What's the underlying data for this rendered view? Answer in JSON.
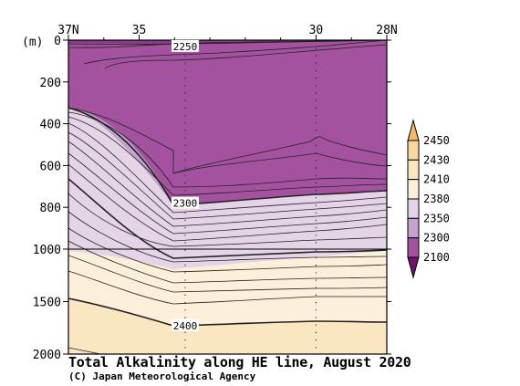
{
  "chart_data": {
    "type": "contour",
    "title": "Total Alkalinity along HE line, August 2020",
    "credit": "(C) Japan Meteorological Agency",
    "x_axis": {
      "ticks": [
        "37N",
        "35",
        "30",
        "28N"
      ],
      "tick_values": [
        37,
        35,
        30,
        28
      ]
    },
    "y_axis": {
      "unit": "(m)",
      "ticks": [
        "0",
        "200",
        "400",
        "600",
        "800",
        "1000",
        "1500",
        "2000"
      ],
      "tick_values": [
        0,
        200,
        400,
        600,
        800,
        1000,
        1500,
        2000
      ],
      "scale_break_depth": 1000
    },
    "station_latitudes": [
      33.7,
      30.0
    ],
    "contour_labels": [
      {
        "text": "2250",
        "lat": 33.7,
        "depth": 30
      },
      {
        "text": "2300",
        "lat": 33.7,
        "depth": 780
      },
      {
        "text": "2400",
        "lat": 33.7,
        "depth": 1730
      }
    ],
    "colorbar": {
      "levels": [
        "2450",
        "2430",
        "2410",
        "2380",
        "2350",
        "2300",
        "2100"
      ],
      "colors": {
        "above_2450": "#f6b968",
        "2430_2450": "#f9d9a0",
        "2410_2430": "#fbe6c2",
        "2380_2410": "#fdf0da",
        "2350_2380": "#e5d3e7",
        "2300_2350": "#c3a3cb",
        "2100_2300": "#a452a0",
        "below_2100": "#6d136c"
      }
    }
  }
}
